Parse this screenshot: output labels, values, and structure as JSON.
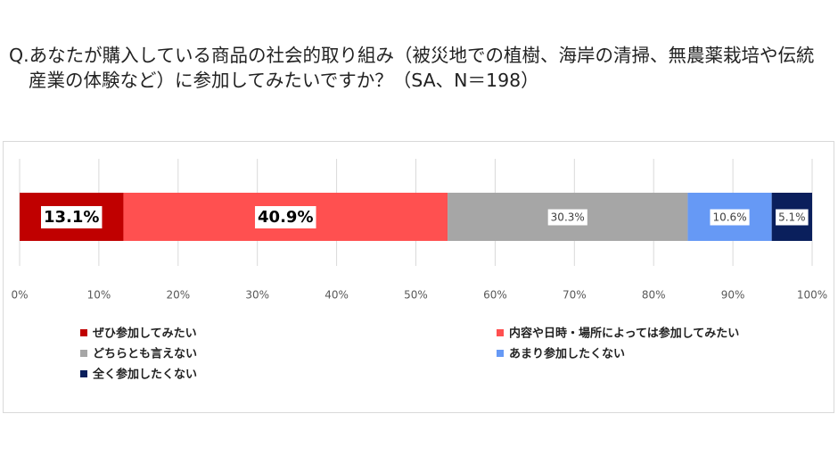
{
  "chart_data": {
    "type": "stacked_bar_h",
    "title": "Q.あなたが購入している商品の社会的取り組み（被災地での植樹、海岸の清掃、無農薬栽培や伝統産業の体験など）に参加してみたいですか？（SA、N＝198）",
    "categories": [
      null
    ],
    "series": [
      {
        "name": "ぜひ参加してみたい",
        "color": "#c00000",
        "values": [
          13.1
        ],
        "value_labels": [
          "13.1%"
        ],
        "label_bold": true
      },
      {
        "name": "内容や日時・場所によっては参加してみたい",
        "color": "#ff5050",
        "values": [
          40.9
        ],
        "value_labels": [
          "40.9%"
        ],
        "label_bold": true
      },
      {
        "name": "どちらとも言えない",
        "color": "#a6a6a6",
        "values": [
          30.3
        ],
        "value_labels": [
          "30.3%"
        ],
        "label_bold": false
      },
      {
        "name": "あまり参加したくない",
        "color": "#6699f5",
        "values": [
          10.6
        ],
        "value_labels": [
          "10.6%"
        ],
        "label_bold": false
      },
      {
        "name": "全く参加したくない",
        "color": "#0a1f5c",
        "values": [
          5.1
        ],
        "value_labels": [
          "5.1%"
        ],
        "label_bold": false
      }
    ],
    "xlim": [
      0,
      100
    ],
    "xticks": [
      {
        "value": 0,
        "label": "0%"
      },
      {
        "value": 10,
        "label": "10%"
      },
      {
        "value": 20,
        "label": "20%"
      },
      {
        "value": 30,
        "label": "30%"
      },
      {
        "value": 40,
        "label": "40%"
      },
      {
        "value": 50,
        "label": "50%"
      },
      {
        "value": 60,
        "label": "60%"
      },
      {
        "value": 70,
        "label": "70%"
      },
      {
        "value": 80,
        "label": "80%"
      },
      {
        "value": 90,
        "label": "90%"
      },
      {
        "value": 100,
        "label": "100%"
      }
    ],
    "grid": true
  }
}
